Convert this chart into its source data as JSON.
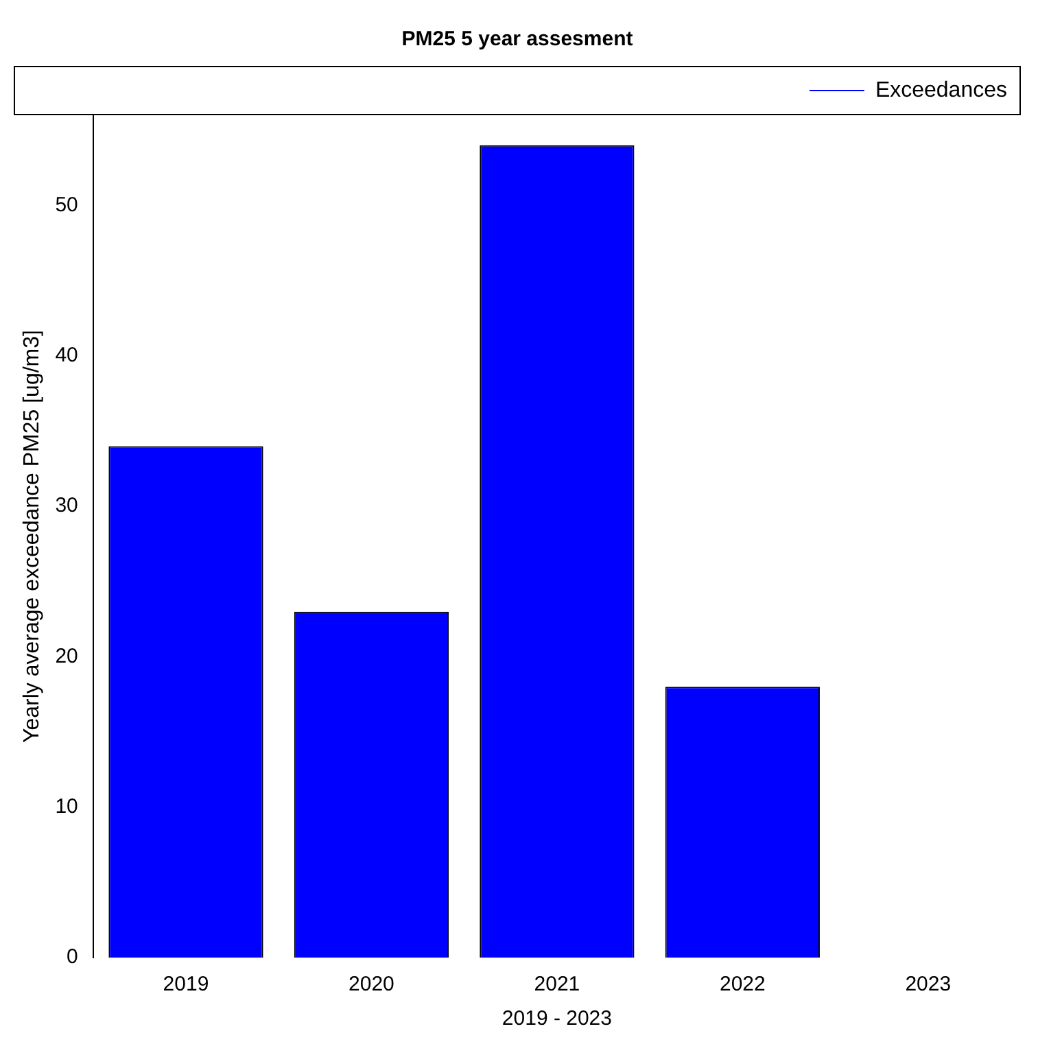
{
  "chart_data": {
    "type": "bar",
    "title": "PM25 5 year assesment",
    "xlabel": "2019 - 2023",
    "ylabel": "Yearly average exceedance PM25 [ug/m3]",
    "categories": [
      "2019",
      "2020",
      "2021",
      "2022",
      "2023"
    ],
    "series": [
      {
        "name": "Exceedances",
        "color": "#0000ff",
        "values": [
          34,
          23,
          54,
          18,
          0
        ]
      }
    ],
    "ylim": [
      0,
      56
    ],
    "yticks": [
      0,
      10,
      20,
      30,
      40,
      50
    ],
    "grid": false,
    "legend": "top right"
  }
}
